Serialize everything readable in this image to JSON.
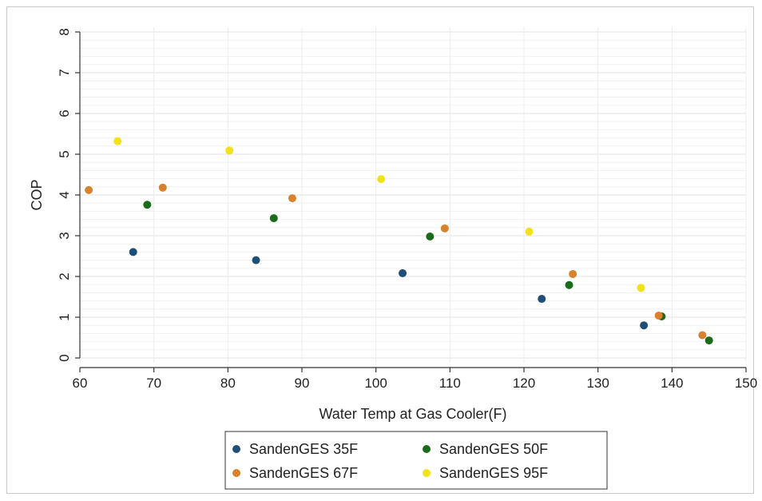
{
  "chart_data": {
    "type": "scatter",
    "xlabel": "Water Temp at Gas Cooler(F)",
    "ylabel": "COP",
    "xlim": [
      60,
      150
    ],
    "ylim": [
      0,
      8
    ],
    "x_ticks": [
      "60",
      "70",
      "80",
      "90",
      "100",
      "110",
      "120",
      "130",
      "140",
      "150"
    ],
    "y_ticks": [
      "0",
      "1",
      "2",
      "3",
      "4",
      "5",
      "6",
      "7",
      "8"
    ],
    "grid": "horizontal",
    "legend_position": "bottom",
    "series": [
      {
        "name": "SandenGES 35F",
        "color": "#1f4e79",
        "points": [
          [
            67.2,
            2.6
          ],
          [
            83.8,
            2.4
          ],
          [
            103.6,
            2.08
          ],
          [
            122.4,
            1.45
          ],
          [
            136.2,
            0.8
          ]
        ]
      },
      {
        "name": "SandenGES 50F",
        "color": "#1a6b1a",
        "points": [
          [
            69.1,
            3.76
          ],
          [
            86.2,
            3.43
          ],
          [
            107.3,
            2.98
          ],
          [
            126.1,
            1.79
          ],
          [
            138.6,
            1.02
          ],
          [
            145.0,
            0.43
          ]
        ]
      },
      {
        "name": "SandenGES 67F",
        "color": "#d9822b",
        "points": [
          [
            61.2,
            4.12
          ],
          [
            71.2,
            4.18
          ],
          [
            88.7,
            3.92
          ],
          [
            109.3,
            3.18
          ],
          [
            126.6,
            2.06
          ],
          [
            138.2,
            1.04
          ],
          [
            144.1,
            0.56
          ]
        ]
      },
      {
        "name": "SandenGES 95F",
        "color": "#f2e21b",
        "points": [
          [
            65.1,
            5.32
          ],
          [
            80.2,
            5.09
          ],
          [
            100.7,
            4.39
          ],
          [
            120.7,
            3.1
          ],
          [
            135.8,
            1.72
          ]
        ]
      }
    ]
  }
}
